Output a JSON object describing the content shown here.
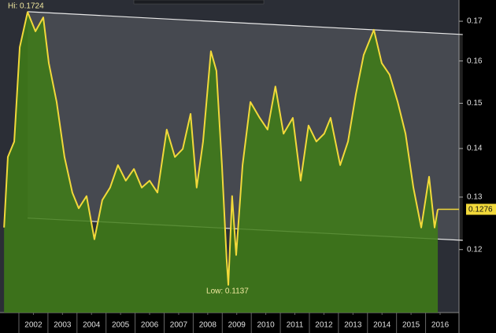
{
  "chart_data": {
    "type": "area",
    "x": [
      2001.49,
      2001.62,
      2001.84,
      2002.03,
      2002.3,
      2002.57,
      2002.84,
      2003.03,
      2003.3,
      2003.57,
      2003.84,
      2004.06,
      2004.33,
      2004.6,
      2004.87,
      2005.14,
      2005.41,
      2005.68,
      2005.96,
      2006.23,
      2006.5,
      2006.77,
      2007.09,
      2007.37,
      2007.64,
      2007.91,
      2008.12,
      2008.34,
      2008.61,
      2008.8,
      2008.99,
      2009.15,
      2009.21,
      2009.34,
      2009.48,
      2009.7,
      2009.97,
      2010.29,
      2010.56,
      2010.83,
      2011.11,
      2011.43,
      2011.7,
      2011.97,
      2012.24,
      2012.51,
      2012.73,
      2013.06,
      2013.33,
      2013.6,
      2013.87,
      2014.22,
      2014.49,
      2014.76,
      2015.04,
      2015.31,
      2015.58,
      2015.85,
      2016.12,
      2016.31,
      2016.42
    ],
    "series": [
      {
        "color": "#f2d93a",
        "fill": "#3f7d16",
        "values": [
          0.1241,
          0.1382,
          0.1415,
          0.1634,
          0.1724,
          0.1674,
          0.171,
          0.1595,
          0.1503,
          0.1382,
          0.1309,
          0.1278,
          0.1302,
          0.1219,
          0.1294,
          0.1319,
          0.1365,
          0.1333,
          0.1357,
          0.1319,
          0.1333,
          0.1309,
          0.1441,
          0.1382,
          0.1399,
          0.1476,
          0.1319,
          0.1415,
          0.1624,
          0.1576,
          0.1365,
          0.1183,
          0.1137,
          0.1302,
          0.119,
          0.1365,
          0.1503,
          0.1467,
          0.1441,
          0.1539,
          0.1432,
          0.1467,
          0.1333,
          0.145,
          0.1415,
          0.1432,
          0.1467,
          0.1365,
          0.1415,
          0.1521,
          0.1615,
          0.1678,
          0.1595,
          0.1567,
          0.1503,
          0.1432,
          0.1319,
          0.1241,
          0.1341,
          0.1241,
          0.1276
        ]
      }
    ],
    "trendlines": [
      {
        "color": "#e8e8e8",
        "x": [
          2002.3,
          2017.28
        ],
        "values": [
          0.1725,
          0.1666
        ]
      },
      {
        "color": "#e8e8e8",
        "x": [
          2002.3,
          2017.28
        ],
        "values": [
          0.1259,
          0.1217
        ]
      }
    ],
    "high_label": "Hi: 0.1724",
    "low_label": "Low: 0.1137",
    "last_value_label": "0.1276",
    "xlim": [
      2001.35,
      2017.15
    ],
    "xticks": [
      {
        "value": 2002.5,
        "label": "2002"
      },
      {
        "value": 2003.5,
        "label": "2003"
      },
      {
        "value": 2004.5,
        "label": "2004"
      },
      {
        "value": 2005.5,
        "label": "2005"
      },
      {
        "value": 2006.5,
        "label": "2006"
      },
      {
        "value": 2007.5,
        "label": "2007"
      },
      {
        "value": 2008.5,
        "label": "2008"
      },
      {
        "value": 2009.5,
        "label": "2009"
      },
      {
        "value": 2010.5,
        "label": "2010"
      },
      {
        "value": 2011.5,
        "label": "2011"
      },
      {
        "value": 2012.5,
        "label": "2012"
      },
      {
        "value": 2013.5,
        "label": "2013"
      },
      {
        "value": 2014.5,
        "label": "2014"
      },
      {
        "value": 2015.5,
        "label": "2015"
      },
      {
        "value": 2016.5,
        "label": "2016"
      }
    ],
    "ylim": [
      0.109,
      0.1756
    ],
    "yticks": [
      0.12,
      0.13,
      0.14,
      0.15,
      0.16,
      0.17
    ],
    "log_scale": true
  }
}
